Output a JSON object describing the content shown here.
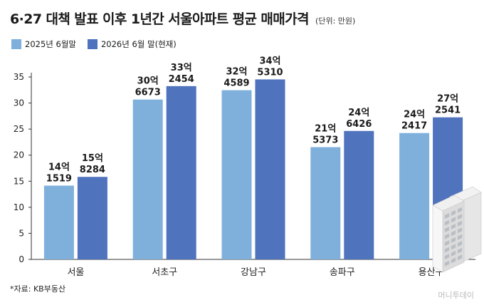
{
  "title": "6·27 대책 발표 이후 1년간 서울아파트 평균 매매가격",
  "subtitle": "(단위: 만원)",
  "source": "*자료: KB부동산",
  "watermark": "머니투데이",
  "colors": {
    "series1": "#7fb0dc",
    "series2": "#4f73bd"
  },
  "chart_data": {
    "type": "bar",
    "categories": [
      "서울",
      "서초구",
      "강남구",
      "송파구",
      "용산구"
    ],
    "series": [
      {
        "name": "2025년 6월말",
        "values": [
          141519,
          306673,
          324589,
          215373,
          242417
        ],
        "labels": [
          [
            "14억",
            "1519"
          ],
          [
            "30억",
            "6673"
          ],
          [
            "32억",
            "4589"
          ],
          [
            "21억",
            "5373"
          ],
          [
            "24억",
            "2417"
          ]
        ]
      },
      {
        "name": "2026년 6월 말(현재)",
        "values": [
          158284,
          332454,
          345310,
          246426,
          272541
        ],
        "labels": [
          [
            "15억",
            "8284"
          ],
          [
            "33억",
            "2454"
          ],
          [
            "34억",
            "5310"
          ],
          [
            "24억",
            "6426"
          ],
          [
            "27억",
            "2541"
          ]
        ]
      }
    ],
    "y_ticks": [
      0,
      5,
      10,
      15,
      20,
      25,
      30,
      35
    ],
    "ylim": [
      0,
      35
    ],
    "y_unit": "억원",
    "grid": false,
    "legend_position": "top-left"
  }
}
